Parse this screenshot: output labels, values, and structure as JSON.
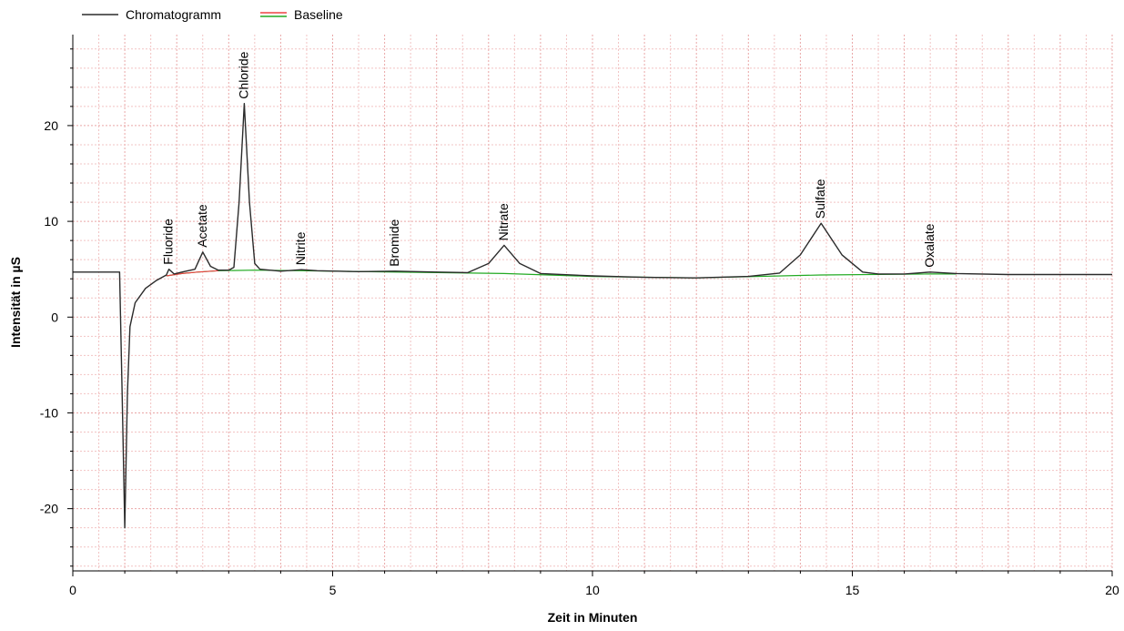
{
  "chart_data": {
    "type": "line",
    "title": "",
    "xlabel": "Zeit in Minuten",
    "ylabel": "Intensität in µS",
    "xlim": [
      0,
      20
    ],
    "ylim": [
      -26.5,
      29.5
    ],
    "x_ticks": [
      0,
      5,
      10,
      15,
      20
    ],
    "y_ticks": [
      -20,
      -10,
      0,
      10,
      20
    ],
    "grid": true,
    "legend_placement": "top-left",
    "colors": {
      "chromatogram": "#2b2b2b",
      "baseline_green": "#22aa22",
      "baseline_red": "#ee4444",
      "grid_minor": "#f2c4c4",
      "grid_major": "#e9a7a7",
      "axis": "#000000"
    },
    "series": [
      {
        "name": "Chromatogramm",
        "points": [
          [
            0,
            4.7
          ],
          [
            0.9,
            4.7
          ],
          [
            0.95,
            -8
          ],
          [
            1.0,
            -22
          ],
          [
            1.05,
            -8
          ],
          [
            1.1,
            -1
          ],
          [
            1.2,
            1.5
          ],
          [
            1.4,
            3.0
          ],
          [
            1.6,
            3.8
          ],
          [
            1.8,
            4.4
          ],
          [
            1.85,
            5.0
          ],
          [
            1.95,
            4.5
          ],
          [
            2.1,
            4.7
          ],
          [
            2.35,
            5.0
          ],
          [
            2.5,
            6.8
          ],
          [
            2.65,
            5.3
          ],
          [
            2.8,
            4.9
          ],
          [
            3.0,
            4.9
          ],
          [
            3.1,
            5.2
          ],
          [
            3.2,
            12
          ],
          [
            3.3,
            22.3
          ],
          [
            3.4,
            12
          ],
          [
            3.5,
            5.6
          ],
          [
            3.6,
            5.0
          ],
          [
            4.0,
            4.8
          ],
          [
            4.4,
            4.95
          ],
          [
            4.7,
            4.85
          ],
          [
            5.5,
            4.75
          ],
          [
            6.2,
            4.8
          ],
          [
            7.0,
            4.7
          ],
          [
            7.6,
            4.65
          ],
          [
            8.0,
            5.6
          ],
          [
            8.3,
            7.5
          ],
          [
            8.6,
            5.6
          ],
          [
            9.0,
            4.55
          ],
          [
            10.0,
            4.3
          ],
          [
            11.0,
            4.15
          ],
          [
            12.0,
            4.1
          ],
          [
            13.0,
            4.25
          ],
          [
            13.6,
            4.6
          ],
          [
            14.0,
            6.5
          ],
          [
            14.4,
            9.8
          ],
          [
            14.8,
            6.5
          ],
          [
            15.2,
            4.7
          ],
          [
            15.5,
            4.5
          ],
          [
            16.0,
            4.5
          ],
          [
            16.5,
            4.7
          ],
          [
            17.0,
            4.55
          ],
          [
            18.0,
            4.45
          ],
          [
            19.0,
            4.45
          ],
          [
            20.0,
            4.45
          ]
        ]
      },
      {
        "name": "Baseline",
        "points": [
          [
            1.8,
            4.3
          ],
          [
            2.1,
            4.55
          ],
          [
            2.4,
            4.7
          ],
          [
            2.8,
            4.85
          ],
          [
            3.5,
            4.9
          ],
          [
            4.4,
            4.85
          ],
          [
            6.2,
            4.7
          ],
          [
            8.3,
            4.55
          ],
          [
            10.0,
            4.25
          ],
          [
            12.0,
            4.1
          ],
          [
            14.4,
            4.4
          ],
          [
            16.5,
            4.5
          ],
          [
            17.0,
            4.5
          ]
        ],
        "red_segment": [
          [
            1.8,
            4.3
          ],
          [
            2.1,
            4.55
          ],
          [
            2.4,
            4.7
          ],
          [
            2.8,
            4.85
          ]
        ]
      }
    ],
    "annotations": [
      {
        "label": "Fluoride",
        "x": 1.85,
        "y": 5.0
      },
      {
        "label": "Acetate",
        "x": 2.5,
        "y": 6.8
      },
      {
        "label": "Chloride",
        "x": 3.3,
        "y": 22.3
      },
      {
        "label": "Nitrite",
        "x": 4.4,
        "y": 4.95
      },
      {
        "label": "Bromide",
        "x": 6.2,
        "y": 4.8
      },
      {
        "label": "Nitrate",
        "x": 8.3,
        "y": 7.5
      },
      {
        "label": "Sulfate",
        "x": 14.4,
        "y": 9.8
      },
      {
        "label": "Oxalate",
        "x": 16.5,
        "y": 4.7
      }
    ]
  }
}
